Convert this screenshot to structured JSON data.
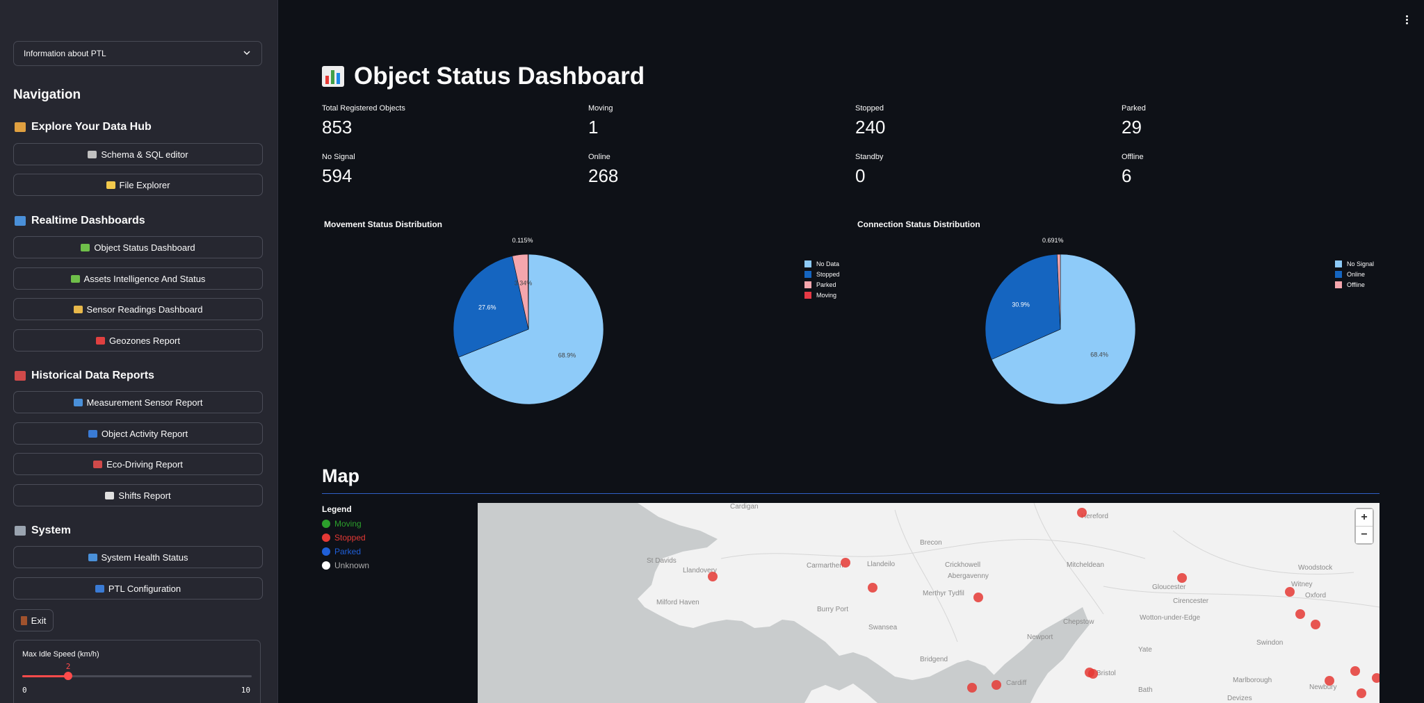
{
  "sidebar": {
    "select": {
      "value": "Information about PTL"
    },
    "nav_title": "Navigation",
    "sections": [
      {
        "title": "Explore Your Data Hub",
        "icon": "books-icon",
        "color": "#e0a040",
        "items": [
          {
            "label": "Schema & SQL editor",
            "icon": "gear-icon",
            "color": "#c0c0c0"
          },
          {
            "label": "File Explorer",
            "icon": "folder-icon",
            "color": "#f2c94c"
          }
        ]
      },
      {
        "title": "Realtime Dashboards",
        "icon": "bar-chart-icon",
        "color": "#4a90d9",
        "items": [
          {
            "label": "Object Status Dashboard",
            "icon": "truck-icon",
            "color": "#6fbf4a"
          },
          {
            "label": "Assets Intelligence And Status",
            "icon": "truck-icon",
            "color": "#6fbf4a"
          },
          {
            "label": "Sensor Readings Dashboard",
            "icon": "ruler-icon",
            "color": "#e8b84a"
          },
          {
            "label": "Geozones Report",
            "icon": "pin-icon",
            "color": "#e04040"
          }
        ]
      },
      {
        "title": "Historical Data Reports",
        "icon": "line-chart-icon",
        "color": "#d04a4a",
        "items": [
          {
            "label": "Measurement Sensor Report",
            "icon": "bar-chart-icon",
            "color": "#4a90d9"
          },
          {
            "label": "Object Activity Report",
            "icon": "refresh-icon",
            "color": "#3a7bd5"
          },
          {
            "label": "Eco-Driving Report",
            "icon": "car-icon",
            "color": "#d04a4a"
          },
          {
            "label": "Shifts Report",
            "icon": "clock-icon",
            "color": "#e0e0e0"
          }
        ]
      },
      {
        "title": "System",
        "icon": "monitor-icon",
        "color": "#9aa4b0",
        "items": [
          {
            "label": "System Health Status",
            "icon": "bar-chart-icon",
            "color": "#4a90d9"
          },
          {
            "label": "PTL Configuration",
            "icon": "refresh-icon",
            "color": "#3a7bd5"
          }
        ]
      }
    ],
    "exit_label": "Exit",
    "slider": {
      "label": "Max Idle Speed (km/h)",
      "value": "2",
      "min": "0",
      "max": "10",
      "fraction": 0.2
    }
  },
  "main": {
    "title": "Object Status Dashboard",
    "metrics": [
      {
        "label": "Total Registered Objects",
        "value": "853"
      },
      {
        "label": "Moving",
        "value": "1"
      },
      {
        "label": "Stopped",
        "value": "240"
      },
      {
        "label": "Parked",
        "value": "29"
      },
      {
        "label": "No Signal",
        "value": "594"
      },
      {
        "label": "Online",
        "value": "268"
      },
      {
        "label": "Standby",
        "value": "0"
      },
      {
        "label": "Offline",
        "value": "6"
      }
    ],
    "map_title": "Map",
    "map_legend": {
      "title": "Legend",
      "items": [
        {
          "label": "Moving",
          "color": "#2ca02c"
        },
        {
          "label": "Stopped",
          "color": "#e53935"
        },
        {
          "label": "Parked",
          "color": "#1f5fd8"
        },
        {
          "label": "Unknown",
          "color": "#ffffff"
        }
      ]
    },
    "map_places": [
      "Hereford",
      "Llandovery",
      "Brecon",
      "St Davids",
      "Carmarthen",
      "Llandeilo",
      "Crickhowell",
      "Abergavenny",
      "Gloucester",
      "Mitcheldean",
      "Woodstock",
      "Witney",
      "Oxford",
      "Merthyr Tydfil",
      "Milford Haven",
      "Burry Port",
      "Swansea",
      "Cirencester",
      "Newport",
      "Chepstow",
      "Wotton-under-Edge",
      "Swindon",
      "Bridgend",
      "Cardiff",
      "Yate",
      "Bristol",
      "Bath",
      "Marlborough",
      "Devizes",
      "Cardigan",
      "Newbury"
    ],
    "map_zoom_in": "+",
    "map_zoom_out": "−"
  },
  "chart_data": [
    {
      "type": "pie",
      "title": "Movement Status Distribution",
      "categories": [
        "No Data",
        "Stopped",
        "Parked",
        "Moving"
      ],
      "values": [
        68.9,
        27.6,
        3.34,
        0.115
      ],
      "labels": [
        "68.9%",
        "27.6%",
        "3.34%",
        "0.115%"
      ],
      "colors": [
        "#8ecbf9",
        "#1565c0",
        "#f4a6ad",
        "#e53945"
      ],
      "legend": "right"
    },
    {
      "type": "pie",
      "title": "Connection Status Distribution",
      "categories": [
        "No Signal",
        "Online",
        "Offline"
      ],
      "values": [
        68.4,
        30.9,
        0.691
      ],
      "labels": [
        "68.4%",
        "30.9%",
        "0.691%"
      ],
      "colors": [
        "#8ecbf9",
        "#1565c0",
        "#f4a6ad"
      ],
      "legend": "right"
    }
  ]
}
